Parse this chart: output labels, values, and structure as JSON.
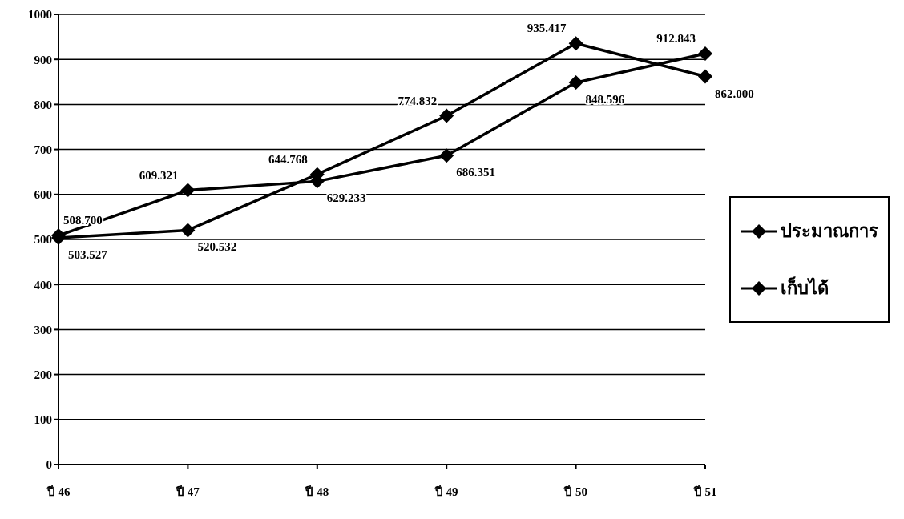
{
  "chart_data": {
    "type": "line",
    "categories": [
      "ปี 46",
      "ปี 47",
      "ปี 48",
      "ปี 49",
      "ปี 50",
      "ปี 51"
    ],
    "series": [
      {
        "name": "ประมาณการ",
        "color": "#000000",
        "values": [
          508.7,
          609.321,
          629.233,
          686.351,
          848.596,
          912.843
        ],
        "value_labels": [
          "508.700",
          "609.321",
          "629.233",
          "686.351",
          "848.596",
          "912.843"
        ]
      },
      {
        "name": "เก็บได้",
        "color": "#000000",
        "values": [
          503.527,
          520.532,
          644.768,
          774.832,
          935.417,
          862.0
        ],
        "value_labels": [
          "503.527",
          "520.532",
          "644.768",
          "774.832",
          "935.417",
          "862.000"
        ]
      }
    ],
    "ylim": [
      0,
      1000
    ],
    "yticks": [
      0,
      100,
      200,
      300,
      400,
      500,
      600,
      700,
      800,
      900,
      1000
    ],
    "grid": "y",
    "legend": "right",
    "marker": "diamond",
    "line_style": "solid"
  }
}
